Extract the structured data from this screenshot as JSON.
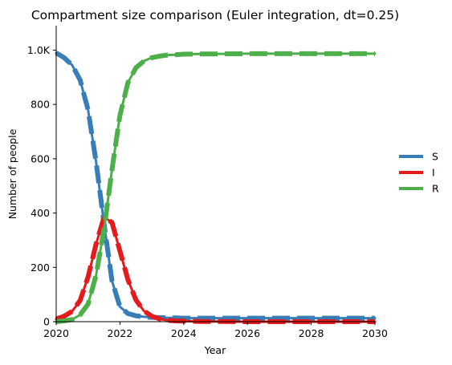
{
  "chart_data": {
    "type": "line",
    "title": "Compartment size comparison (Euler integration, dt=0.25)",
    "xlabel": "Year",
    "ylabel": "Number of people",
    "xlim": [
      2020,
      2030
    ],
    "ylim": [
      0,
      1090
    ],
    "x_ticks": [
      {
        "value": 2020,
        "label": "2020"
      },
      {
        "value": 2022,
        "label": "2022"
      },
      {
        "value": 2024,
        "label": "2024"
      },
      {
        "value": 2026,
        "label": "2026"
      },
      {
        "value": 2028,
        "label": "2028"
      },
      {
        "value": 2030,
        "label": "2030"
      }
    ],
    "y_ticks": [
      {
        "value": 0,
        "label": "0"
      },
      {
        "value": 200,
        "label": "200"
      },
      {
        "value": 400,
        "label": "400"
      },
      {
        "value": 600,
        "label": "600"
      },
      {
        "value": 800,
        "label": "800"
      },
      {
        "value": 1000,
        "label": "1.0K"
      }
    ],
    "grid": false,
    "legend": {
      "position": "right"
    },
    "x": [
      2020,
      2020.25,
      2020.5,
      2020.75,
      2021,
      2021.25,
      2021.5,
      2021.75,
      2022,
      2022.25,
      2022.5,
      2022.75,
      2023,
      2023.25,
      2023.5,
      2023.75,
      2024,
      2024.5,
      2025,
      2026,
      2027,
      2028,
      2029,
      2030
    ],
    "series": [
      {
        "name": "S",
        "color": "#377eb8",
        "values": [
          990,
          972,
          945,
          890,
          780,
          590,
          360,
          150,
          55,
          30,
          22,
          18,
          16,
          15,
          14,
          14,
          13,
          13,
          13,
          13,
          13,
          13,
          13,
          13
        ]
      },
      {
        "name": "I",
        "color": "#e41a1c",
        "values": [
          10,
          20,
          38,
          78,
          165,
          285,
          385,
          365,
          260,
          155,
          80,
          40,
          20,
          10,
          5,
          3,
          2,
          1,
          1,
          0,
          0,
          0,
          0,
          0
        ]
      },
      {
        "name": "R",
        "color": "#4daf4a",
        "values": [
          0,
          3,
          8,
          25,
          65,
          170,
          340,
          560,
          760,
          880,
          935,
          960,
          972,
          978,
          982,
          983,
          985,
          986,
          986,
          987,
          987,
          987,
          987,
          987
        ]
      }
    ]
  }
}
